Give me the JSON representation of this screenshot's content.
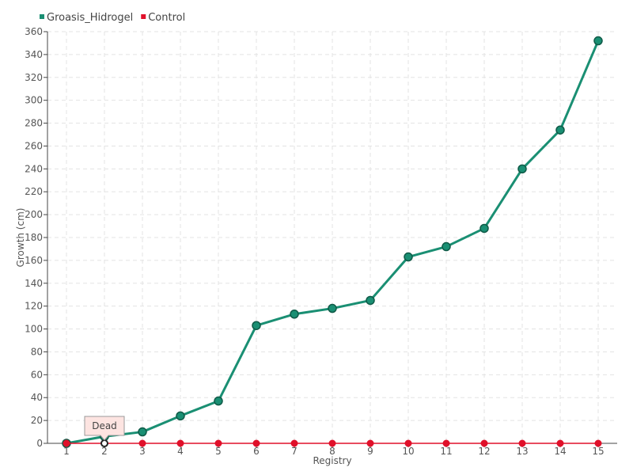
{
  "chart_data": {
    "type": "line",
    "xlabel": "Registry",
    "ylabel": "Growth (cm)",
    "categories": [
      "1",
      "2",
      "3",
      "4",
      "5",
      "6",
      "7",
      "8",
      "9",
      "10",
      "11",
      "12",
      "13",
      "14",
      "15"
    ],
    "ylim": [
      0,
      360
    ],
    "y_ticks": [
      0,
      20,
      40,
      60,
      80,
      100,
      120,
      140,
      160,
      180,
      200,
      220,
      240,
      260,
      280,
      300,
      320,
      340,
      360
    ],
    "grid": true,
    "legend_position": "top-left",
    "series": [
      {
        "name": "Groasis_Hidrogel",
        "color": "#1a8f73",
        "values": [
          0,
          6,
          10,
          24,
          37,
          103,
          113,
          118,
          125,
          163,
          172,
          188,
          240,
          274,
          352
        ]
      },
      {
        "name": "Control",
        "color": "#e0102a",
        "values": [
          0,
          0,
          0,
          0,
          0,
          0,
          0,
          0,
          0,
          0,
          0,
          0,
          0,
          0,
          0
        ]
      }
    ],
    "annotations": [
      {
        "category": "2",
        "series": "Control",
        "text": "Dead"
      }
    ]
  }
}
